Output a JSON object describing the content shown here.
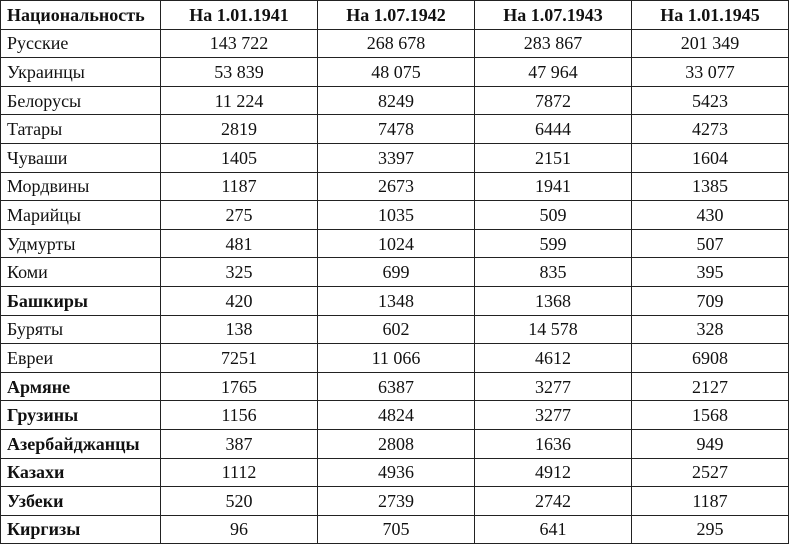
{
  "table": {
    "header": [
      "Национальность",
      "На 1.01.1941",
      "На 1.07.1942",
      "На 1.07.1943",
      "На 1.01.1945"
    ],
    "rows": [
      {
        "name": "Русские",
        "values": [
          "143 722",
          "268 678",
          "283 867",
          "201 349"
        ]
      },
      {
        "name": "Украинцы",
        "values": [
          "53 839",
          "48 075",
          "47 964",
          "33 077"
        ]
      },
      {
        "name": "Белорусы",
        "values": [
          "11 224",
          "8249",
          "7872",
          "5423"
        ]
      },
      {
        "name": "Татары",
        "values": [
          "2819",
          "7478",
          "6444",
          "4273"
        ]
      },
      {
        "name": "Чуваши",
        "values": [
          "1405",
          "3397",
          "2151",
          "1604"
        ]
      },
      {
        "name": "Мордвины",
        "values": [
          "1187",
          "2673",
          "1941",
          "1385"
        ]
      },
      {
        "name": "Марийцы",
        "values": [
          "275",
          "1035",
          "509",
          "430"
        ]
      },
      {
        "name": "Удмурты",
        "values": [
          "481",
          "1024",
          "599",
          "507"
        ]
      },
      {
        "name": "Коми",
        "values": [
          "325",
          "699",
          "835",
          "395"
        ]
      },
      {
        "name": "Башкиры",
        "values": [
          "420",
          "1348",
          "1368",
          "709"
        ],
        "bold": true
      },
      {
        "name": "Буряты",
        "values": [
          "138",
          "602",
          "14 578",
          "328"
        ]
      },
      {
        "name": "Евреи",
        "values": [
          "7251",
          "11 066",
          "4612",
          "6908"
        ]
      },
      {
        "name": "Армяне",
        "values": [
          "1765",
          "6387",
          "3277",
          "2127"
        ],
        "bold": true
      },
      {
        "name": "Грузины",
        "values": [
          "1156",
          "4824",
          "3277",
          "1568"
        ],
        "bold": true
      },
      {
        "name": "Азербайджанцы",
        "values": [
          "387",
          "2808",
          "1636",
          "949"
        ],
        "bold": true
      },
      {
        "name": "Казахи",
        "values": [
          "1112",
          "4936",
          "4912",
          "2527"
        ],
        "bold": true
      },
      {
        "name": "Узбеки",
        "values": [
          "520",
          "2739",
          "2742",
          "1187"
        ],
        "bold": true
      },
      {
        "name": "Киргизы",
        "values": [
          "96",
          "705",
          "641",
          "295"
        ],
        "bold": true
      }
    ]
  }
}
